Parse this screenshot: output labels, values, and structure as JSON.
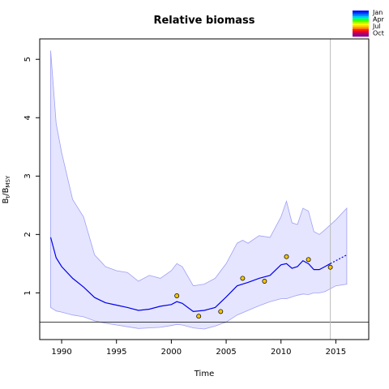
{
  "chart_data": {
    "type": "line",
    "title": "Relative biomass",
    "xlabel": "Time",
    "ylabel_main": "B",
    "ylabel_sub1": "t",
    "ylabel_sep": "/B",
    "ylabel_sub2": "MSY",
    "xlim": [
      1988.0,
      2018.0
    ],
    "ylim": [
      0.2,
      5.35
    ],
    "xticks": [
      1990,
      1995,
      2000,
      2005,
      2010,
      2015
    ],
    "yticks": [
      1,
      2,
      3,
      4,
      5
    ],
    "reference_line_y": 0.5,
    "vertical_line_x": 2014.5,
    "series": [
      {
        "role": "median",
        "color": "#0000ee",
        "x": [
          1989.0,
          1989.5,
          1990.0,
          1991.0,
          1992.0,
          1993.0,
          1994.0,
          1995.0,
          1996.0,
          1997.0,
          1998.0,
          1999.0,
          2000.0,
          2000.5,
          2001.0,
          2002.0,
          2003.0,
          2004.0,
          2005.0,
          2006.0,
          2006.5,
          2007.0,
          2008.0,
          2009.0,
          2010.0,
          2010.5,
          2011.0,
          2011.5,
          2012.0,
          2012.5,
          2013.0,
          2013.5,
          2014.0,
          2014.5
        ],
        "y": [
          1.95,
          1.6,
          1.45,
          1.25,
          1.1,
          0.92,
          0.83,
          0.79,
          0.75,
          0.7,
          0.72,
          0.77,
          0.8,
          0.85,
          0.82,
          0.68,
          0.7,
          0.75,
          0.93,
          1.12,
          1.15,
          1.18,
          1.25,
          1.3,
          1.48,
          1.5,
          1.42,
          1.45,
          1.55,
          1.5,
          1.4,
          1.4,
          1.45,
          1.5
        ]
      },
      {
        "role": "prediction",
        "color": "#0000ee",
        "x": [
          2014.5,
          2015.0,
          2016.0
        ],
        "y": [
          1.5,
          1.55,
          1.65
        ]
      }
    ],
    "band": {
      "color": "#e5e5ff",
      "edge_color": "#9f9ff5",
      "x": [
        1989.0,
        1989.5,
        1990.0,
        1991.0,
        1992.0,
        1993.0,
        1994.0,
        1995.0,
        1996.0,
        1997.0,
        1998.0,
        1999.0,
        2000.0,
        2000.5,
        2001.0,
        2002.0,
        2003.0,
        2004.0,
        2005.0,
        2006.0,
        2006.5,
        2007.0,
        2008.0,
        2009.0,
        2010.0,
        2010.5,
        2011.0,
        2011.5,
        2012.0,
        2012.5,
        2013.0,
        2013.5,
        2014.0,
        2015.0,
        2016.0
      ],
      "upper": [
        5.15,
        3.9,
        3.4,
        2.6,
        2.3,
        1.65,
        1.45,
        1.38,
        1.35,
        1.2,
        1.3,
        1.25,
        1.38,
        1.5,
        1.45,
        1.12,
        1.15,
        1.25,
        1.5,
        1.85,
        1.9,
        1.85,
        1.98,
        1.95,
        2.3,
        2.57,
        2.2,
        2.17,
        2.45,
        2.4,
        2.05,
        2.0,
        2.08,
        2.25,
        2.45
      ],
      "lower": [
        0.75,
        0.69,
        0.67,
        0.62,
        0.59,
        0.52,
        0.48,
        0.45,
        0.42,
        0.39,
        0.4,
        0.41,
        0.44,
        0.46,
        0.45,
        0.4,
        0.38,
        0.43,
        0.5,
        0.62,
        0.66,
        0.7,
        0.78,
        0.85,
        0.9,
        0.9,
        0.93,
        0.96,
        0.98,
        0.97,
        1.0,
        1.0,
        1.02,
        1.12,
        1.15
      ]
    },
    "observations": {
      "color": "#f5c400",
      "x": [
        2000.5,
        2002.5,
        2004.5,
        2006.5,
        2008.5,
        2010.5,
        2012.5,
        2014.5
      ],
      "y": [
        0.95,
        0.6,
        0.68,
        1.25,
        1.2,
        1.62,
        1.57,
        1.44
      ]
    },
    "legend": {
      "placement": "top-right",
      "labels": [
        "Jan",
        "Apr",
        "Jul",
        "Oct"
      ],
      "colors": [
        "#0000ff",
        "#0044ff",
        "#0088ff",
        "#00ccff",
        "#00ff88",
        "#44ff00",
        "#aaff00",
        "#ffff00",
        "#ffcc00",
        "#ff8800",
        "#ff2200",
        "#ee0033",
        "#aa0066",
        "#880099"
      ]
    }
  }
}
